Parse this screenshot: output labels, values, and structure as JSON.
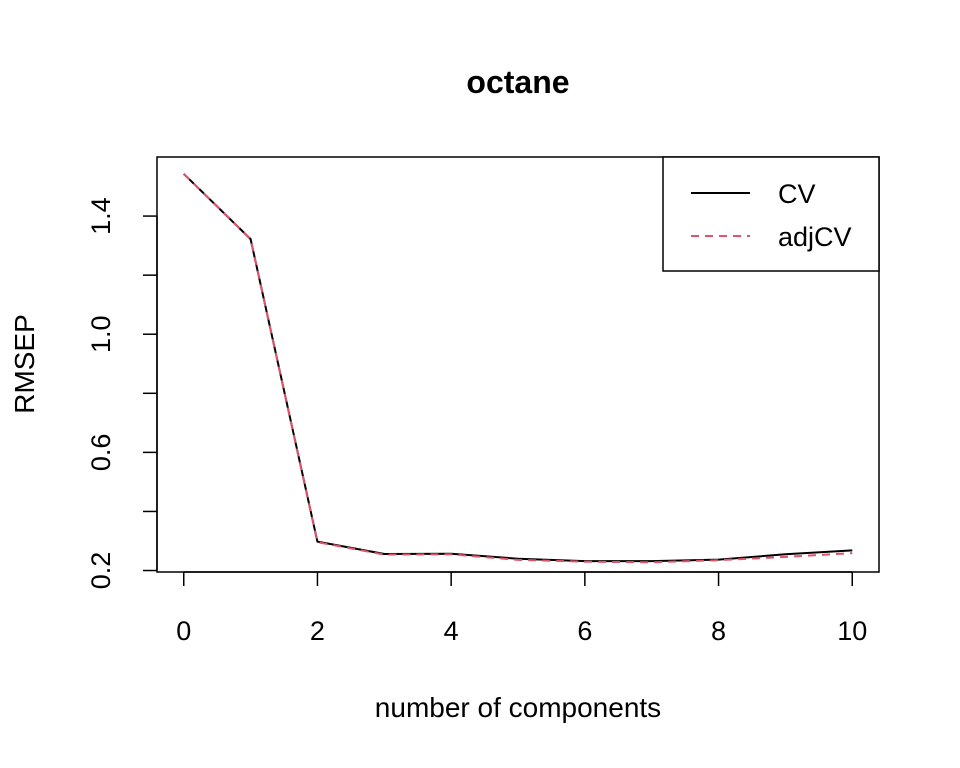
{
  "chart_data": {
    "type": "line",
    "title": "octane",
    "xlabel": "number of components",
    "ylabel": "RMSEP",
    "x": [
      0,
      1,
      2,
      3,
      4,
      5,
      6,
      7,
      8,
      9,
      10
    ],
    "xlim": [
      -0.4,
      10.4
    ],
    "ylim": [
      0.195,
      1.6
    ],
    "xticks": [
      0,
      2,
      4,
      6,
      8,
      10
    ],
    "xtick_labels": [
      "0",
      "2",
      "4",
      "6",
      "8",
      "10"
    ],
    "yticks": [
      0.2,
      0.4,
      0.6,
      0.8,
      1.0,
      1.2,
      1.4
    ],
    "ytick_labels": [
      "0.2",
      "",
      "0.6",
      "",
      "1.0",
      "",
      "1.4"
    ],
    "grid": false,
    "legend_position": "top-right",
    "series": [
      {
        "name": "CV",
        "color": "#000000",
        "dash": "solid",
        "values": [
          1.543,
          1.322,
          0.298,
          0.256,
          0.257,
          0.24,
          0.232,
          0.232,
          0.237,
          0.255,
          0.268
        ]
      },
      {
        "name": "adjCV",
        "color": "#DF536B",
        "dash": "dashed",
        "values": [
          1.543,
          1.322,
          0.296,
          0.254,
          0.255,
          0.236,
          0.23,
          0.228,
          0.235,
          0.246,
          0.259
        ]
      }
    ]
  }
}
